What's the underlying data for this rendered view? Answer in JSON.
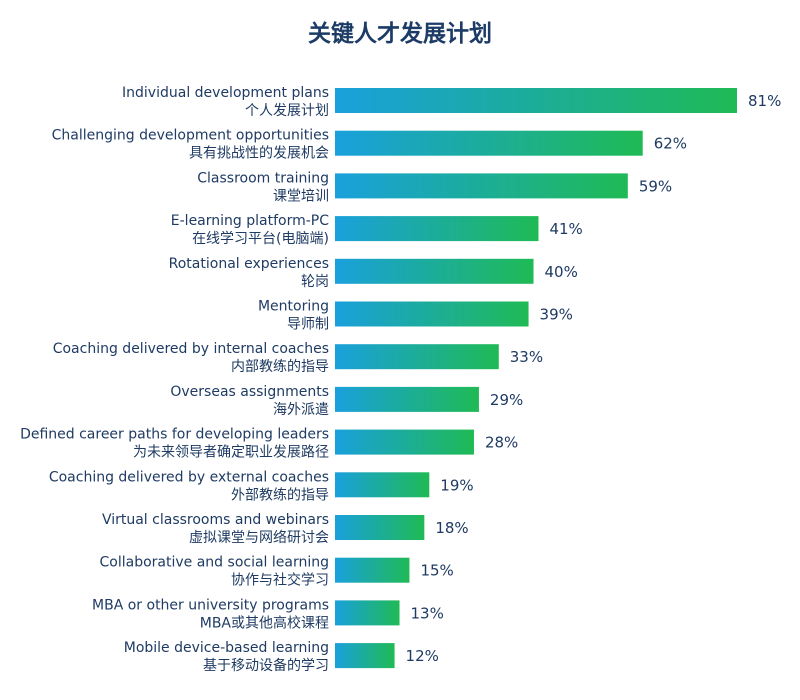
{
  "chart_data": {
    "type": "bar",
    "orientation": "horizontal",
    "title": "关键人才发展计划",
    "value_suffix": "%",
    "xlim": [
      0,
      81
    ],
    "categories": [
      {
        "en": "Individual development plans",
        "zh": "个人发展计划"
      },
      {
        "en": "Challenging development opportunities",
        "zh": "具有挑战性的发展机会"
      },
      {
        "en": "Classroom training",
        "zh": "课堂培训"
      },
      {
        "en": "E-learning platform-PC",
        "zh": "在线学习平台(电脑端)"
      },
      {
        "en": "Rotational experiences",
        "zh": "轮岗"
      },
      {
        "en": "Mentoring",
        "zh": "导师制"
      },
      {
        "en": "Coaching delivered by internal coaches",
        "zh": "内部教练的指导"
      },
      {
        "en": "Overseas assignments",
        "zh": "海外派遣"
      },
      {
        "en": "Defined career paths for developing leaders",
        "zh": "为未来领导者确定职业发展路径"
      },
      {
        "en": "Coaching delivered by external coaches",
        "zh": "外部教练的指导"
      },
      {
        "en": "Virtual classrooms and webinars",
        "zh": "虚拟课堂与网络研讨会"
      },
      {
        "en": "Collaborative and social learning",
        "zh": "协作与社交学习"
      },
      {
        "en": "MBA or other university programs",
        "zh": "MBA或其他高校课程"
      },
      {
        "en": "Mobile device-based learning",
        "zh": "基于移动设备的学习"
      }
    ],
    "values": [
      81,
      62,
      59,
      41,
      40,
      39,
      33,
      29,
      28,
      19,
      18,
      15,
      13,
      12
    ],
    "bar_gradient": [
      "#1aa0dc",
      "#1fba55"
    ],
    "grid": false,
    "legend": "none"
  }
}
